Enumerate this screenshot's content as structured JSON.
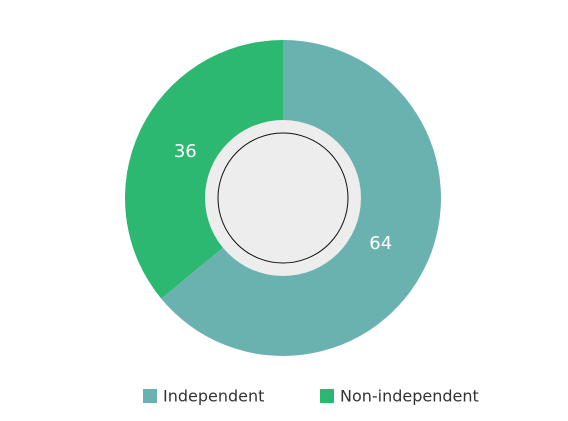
{
  "chart_data": {
    "type": "pie",
    "donut": true,
    "categories": [
      "Independent",
      "Non-independent"
    ],
    "values": [
      64,
      36
    ],
    "colors": [
      "#6ab2b0",
      "#2db872"
    ]
  }
}
